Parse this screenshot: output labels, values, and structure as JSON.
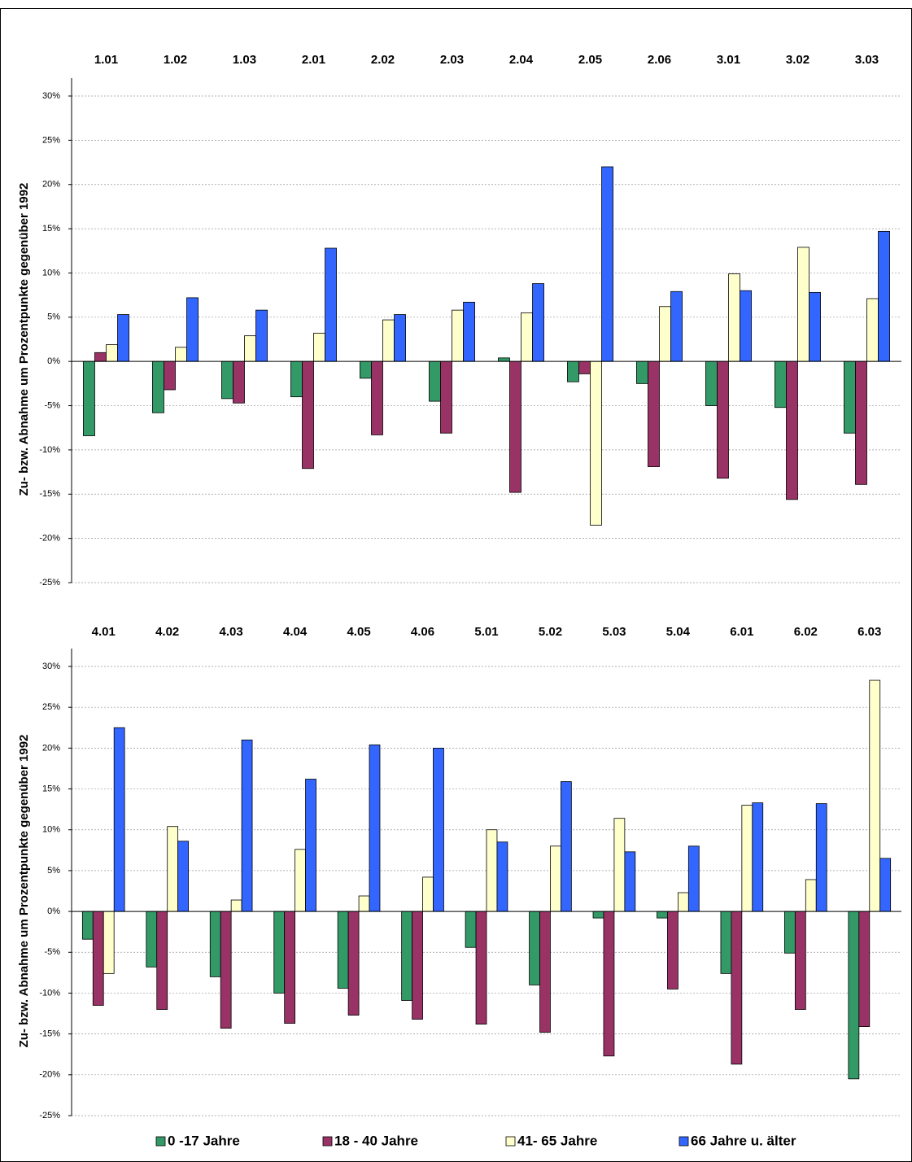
{
  "chart_data": [
    {
      "type": "bar",
      "ylabel": "Zu- bzw. Abnahme um Prozentpunkte gegenüber 1992",
      "categories": [
        "1.01",
        "1.02",
        "1.03",
        "2.01",
        "2.02",
        "2.03",
        "2.04",
        "2.05",
        "2.06",
        "3.01",
        "3.02",
        "3.03"
      ],
      "series": [
        {
          "color": "#339966",
          "values": [
            -8.4,
            -5.8,
            -4.2,
            -4.0,
            -1.9,
            -4.5,
            0.4,
            -2.3,
            -2.5,
            -5.0,
            -5.2,
            -8.1
          ]
        },
        {
          "color": "#993366",
          "values": [
            1.0,
            -3.2,
            -4.7,
            -12.1,
            -8.3,
            -8.1,
            -14.8,
            -1.4,
            -11.9,
            -13.2,
            -15.6,
            -13.9
          ]
        },
        {
          "color": "#ffffcc",
          "values": [
            1.9,
            1.6,
            2.9,
            3.2,
            4.7,
            5.8,
            5.5,
            -18.5,
            6.2,
            9.9,
            12.9,
            7.1
          ]
        },
        {
          "color": "#3366ff",
          "values": [
            5.3,
            7.2,
            5.8,
            12.8,
            5.3,
            6.7,
            8.8,
            22.0,
            7.9,
            8.0,
            7.8,
            14.7
          ]
        }
      ],
      "ylim": [
        -25,
        30
      ],
      "yticks": [
        {
          "value": -25,
          "label": "-25%"
        },
        {
          "value": -20,
          "label": "-20%"
        },
        {
          "value": -15,
          "label": "-15%"
        },
        {
          "value": -10,
          "label": "-10%"
        },
        {
          "value": -5,
          "label": "-5%"
        },
        {
          "value": 0,
          "label": "0%"
        },
        {
          "value": 5,
          "label": "5%"
        },
        {
          "value": 10,
          "label": "10%"
        },
        {
          "value": 15,
          "label": "15%"
        },
        {
          "value": 20,
          "label": "20%"
        },
        {
          "value": 25,
          "label": "25%"
        },
        {
          "value": 30,
          "label": "30%"
        }
      ],
      "grid": true
    },
    {
      "type": "bar",
      "ylabel": "Zu- bzw. Abnahme um Prozentpunkte gegenüber 1992",
      "categories": [
        "4.01",
        "4.02",
        "4.03",
        "4.04",
        "4.05",
        "4.06",
        "5.01",
        "5.02",
        "5.03",
        "5.04",
        "6.01",
        "6.02",
        "6.03"
      ],
      "series": [
        {
          "name": "0 -17 Jahre",
          "color": "#339966",
          "values": [
            -3.4,
            -6.8,
            -8.0,
            -10.0,
            -9.4,
            -10.9,
            -4.4,
            -9.0,
            -0.8,
            -0.8,
            -7.6,
            -5.1,
            -20.5
          ]
        },
        {
          "name": "18 - 40 Jahre",
          "color": "#993366",
          "values": [
            -11.5,
            -12.0,
            -14.3,
            -13.7,
            -12.7,
            -13.2,
            -13.8,
            -14.8,
            -17.7,
            -9.5,
            -18.7,
            -12.0,
            -14.1
          ]
        },
        {
          "name": "41- 65 Jahre",
          "color": "#ffffcc",
          "values": [
            -7.6,
            10.4,
            1.4,
            7.6,
            1.9,
            4.2,
            10.0,
            8.0,
            11.4,
            2.3,
            13.0,
            3.9,
            28.3
          ]
        },
        {
          "name": "66 Jahre u. älter",
          "color": "#3366ff",
          "values": [
            22.5,
            8.6,
            21.0,
            16.2,
            20.4,
            20.0,
            8.5,
            15.9,
            7.3,
            8.0,
            13.3,
            13.2,
            6.5
          ]
        }
      ],
      "ylim": [
        -25,
        30
      ],
      "yticks": [
        {
          "value": -25,
          "label": "-25%"
        },
        {
          "value": -20,
          "label": "-20%"
        },
        {
          "value": -15,
          "label": "-15%"
        },
        {
          "value": -10,
          "label": "-10%"
        },
        {
          "value": -5,
          "label": "-5%"
        },
        {
          "value": 0,
          "label": "0%"
        },
        {
          "value": 5,
          "label": "5%"
        },
        {
          "value": 10,
          "label": "10%"
        },
        {
          "value": 15,
          "label": "15%"
        },
        {
          "value": 20,
          "label": "20%"
        },
        {
          "value": 25,
          "label": "25%"
        },
        {
          "value": 30,
          "label": "30%"
        }
      ],
      "grid": true,
      "legend": "bottom"
    }
  ]
}
